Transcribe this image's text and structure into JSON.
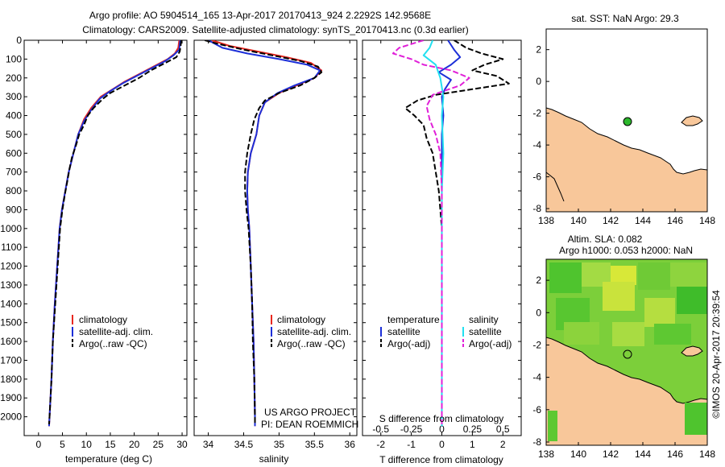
{
  "header": {
    "line1": "Argo profile: AO 5904514_165 13-Apr-2017 20170413_924 2.2292S 142.9568E",
    "line2": "Climatology: CARS2009. Satellite-adjusted climatology: synTS_20170413.nc (0.3d earlier)"
  },
  "colors": {
    "climatology": "#e8281f",
    "satellite": "#1c2fd8",
    "argo": "#000000",
    "salinity_satellite": "#22e0f0",
    "salinity_argo": "#e020d8",
    "land": "#f8c79a",
    "sla_field": "#7ccf3a"
  },
  "chart_data": [
    {
      "type": "line",
      "panel": "temperature",
      "xlabel": "temperature (deg C)",
      "ylabel": "depth",
      "xlim": [
        -3,
        31
      ],
      "ylim": [
        2100,
        0
      ],
      "xticks": [
        "0",
        "5",
        "10",
        "15",
        "20",
        "25",
        "30"
      ],
      "yticks": [
        "0",
        "100",
        "200",
        "300",
        "400",
        "500",
        "600",
        "700",
        "800",
        "900",
        "1000",
        "1100",
        "1200",
        "1300",
        "1400",
        "1500",
        "1600",
        "1700",
        "1800",
        "1900",
        "2000"
      ],
      "legend": [
        "climatology",
        "satellite-adj. clim.",
        "Argo(..raw -QC)"
      ],
      "series": [
        {
          "name": "climatology",
          "color": "#e8281f",
          "points": [
            [
              29.4,
              0
            ],
            [
              29.2,
              40
            ],
            [
              28.5,
              70
            ],
            [
              27,
              100
            ],
            [
              24,
              140
            ],
            [
              21,
              180
            ],
            [
              18,
              220
            ],
            [
              15.5,
              260
            ],
            [
              13,
              300
            ],
            [
              11,
              360
            ],
            [
              9.5,
              420
            ],
            [
              8.3,
              500
            ],
            [
              7.3,
              600
            ],
            [
              6.3,
              700
            ],
            [
              5.6,
              800
            ],
            [
              4.9,
              900
            ],
            [
              4.4,
              1000
            ],
            [
              3.9,
              1200
            ],
            [
              3.4,
              1400
            ],
            [
              3.0,
              1600
            ],
            [
              2.7,
              1800
            ],
            [
              2.3,
              2000
            ],
            [
              2.2,
              2050
            ]
          ]
        },
        {
          "name": "satellite-adj. clim.",
          "color": "#1c2fd8",
          "points": [
            [
              29.6,
              0
            ],
            [
              29.4,
              50
            ],
            [
              28.2,
              80
            ],
            [
              26.5,
              110
            ],
            [
              23.5,
              150
            ],
            [
              20.5,
              190
            ],
            [
              17.5,
              230
            ],
            [
              15,
              270
            ],
            [
              12.8,
              310
            ],
            [
              11,
              370
            ],
            [
              9.5,
              430
            ],
            [
              8.3,
              500
            ],
            [
              7.3,
              600
            ],
            [
              6.3,
              700
            ],
            [
              5.6,
              800
            ],
            [
              4.9,
              900
            ],
            [
              4.4,
              1000
            ],
            [
              3.9,
              1200
            ],
            [
              3.4,
              1400
            ],
            [
              3.0,
              1600
            ],
            [
              2.7,
              1800
            ],
            [
              2.3,
              2000
            ],
            [
              2.2,
              2050
            ]
          ]
        },
        {
          "name": "Argo(..raw -QC)",
          "color": "#000000",
          "dashed": true,
          "points": [
            [
              29.8,
              0
            ],
            [
              29.7,
              30
            ],
            [
              29.5,
              60
            ],
            [
              28.8,
              90
            ],
            [
              26.5,
              120
            ],
            [
              23.5,
              160
            ],
            [
              21,
              200
            ],
            [
              18,
              240
            ],
            [
              15,
              280
            ],
            [
              13.5,
              310
            ],
            [
              11.5,
              360
            ],
            [
              10.3,
              400
            ],
            [
              9.5,
              450
            ],
            [
              8.5,
              500
            ],
            [
              7.8,
              560
            ],
            [
              7.0,
              620
            ],
            [
              6.5,
              680
            ],
            [
              6.0,
              750
            ],
            [
              5.5,
              820
            ],
            [
              5.0,
              900
            ],
            [
              4.5,
              1000
            ],
            [
              4.0,
              1200
            ],
            [
              3.5,
              1400
            ],
            [
              3.0,
              1600
            ],
            [
              2.7,
              1800
            ],
            [
              2.3,
              2000
            ],
            [
              2.2,
              2040
            ]
          ]
        }
      ]
    },
    {
      "type": "line",
      "panel": "salinity",
      "xlabel": "salinity",
      "ylim": [
        2100,
        0
      ],
      "xlim": [
        33.8,
        36.1
      ],
      "xticks": [
        "34",
        "34.5",
        "35",
        "35.5",
        "36"
      ],
      "legend": [
        "climatology",
        "satellite-adj. clim.",
        "Argo(..raw -QC)"
      ],
      "annotation": [
        "US ARGO PROJECT",
        "PI: DEAN ROEMMICH"
      ],
      "series": [
        {
          "name": "climatology",
          "color": "#e8281f",
          "points": [
            [
              34.05,
              0
            ],
            [
              34.3,
              30
            ],
            [
              34.7,
              60
            ],
            [
              35.1,
              90
            ],
            [
              35.45,
              120
            ],
            [
              35.6,
              160
            ],
            [
              35.5,
              200
            ],
            [
              35.25,
              240
            ],
            [
              35.0,
              280
            ],
            [
              34.8,
              330
            ],
            [
              34.72,
              400
            ],
            [
              34.68,
              500
            ],
            [
              34.6,
              600
            ],
            [
              34.56,
              700
            ],
            [
              34.55,
              800
            ],
            [
              34.56,
              900
            ],
            [
              34.58,
              1000
            ],
            [
              34.6,
              1200
            ],
            [
              34.62,
              1400
            ],
            [
              34.64,
              1600
            ],
            [
              34.65,
              1800
            ],
            [
              34.66,
              2000
            ],
            [
              34.66,
              2050
            ]
          ]
        },
        {
          "name": "satellite-adj. clim.",
          "color": "#1c2fd8",
          "points": [
            [
              34.0,
              0
            ],
            [
              34.2,
              40
            ],
            [
              34.55,
              70
            ],
            [
              35.0,
              100
            ],
            [
              35.4,
              130
            ],
            [
              35.58,
              160
            ],
            [
              35.5,
              200
            ],
            [
              35.22,
              240
            ],
            [
              34.98,
              280
            ],
            [
              34.8,
              330
            ],
            [
              34.72,
              400
            ],
            [
              34.68,
              500
            ],
            [
              34.6,
              600
            ],
            [
              34.56,
              700
            ],
            [
              34.55,
              800
            ],
            [
              34.56,
              900
            ],
            [
              34.58,
              1000
            ],
            [
              34.6,
              1200
            ],
            [
              34.62,
              1400
            ],
            [
              34.64,
              1600
            ],
            [
              34.65,
              1800
            ],
            [
              34.66,
              2000
            ],
            [
              34.66,
              2050
            ]
          ]
        },
        {
          "name": "Argo(..raw -QC)",
          "color": "#000000",
          "dashed": true,
          "points": [
            [
              33.95,
              0
            ],
            [
              34.15,
              20
            ],
            [
              34.5,
              50
            ],
            [
              34.9,
              80
            ],
            [
              35.3,
              110
            ],
            [
              35.55,
              140
            ],
            [
              35.6,
              170
            ],
            [
              35.5,
              200
            ],
            [
              35.3,
              240
            ],
            [
              35.0,
              280
            ],
            [
              34.8,
              320
            ],
            [
              34.72,
              360
            ],
            [
              34.65,
              420
            ],
            [
              34.6,
              500
            ],
            [
              34.55,
              600
            ],
            [
              34.52,
              700
            ],
            [
              34.52,
              800
            ],
            [
              34.54,
              900
            ],
            [
              34.57,
              1000
            ],
            [
              34.6,
              1200
            ],
            [
              34.62,
              1400
            ],
            [
              34.63,
              1600
            ],
            [
              34.65,
              1800
            ],
            [
              34.66,
              2000
            ],
            [
              34.66,
              2040
            ]
          ]
        }
      ]
    },
    {
      "type": "line",
      "panel": "difference",
      "xlabel": "T difference from climatology",
      "top_axis_label": "S difference from climatology",
      "ylim": [
        2100,
        0
      ],
      "xlim": [
        -2.6,
        2.6
      ],
      "xticks_T": [
        "-2",
        "-1",
        "0",
        "1",
        "2"
      ],
      "xticks_S": [
        "-0.5",
        "-0.25",
        "0",
        "0.25",
        "0.5"
      ],
      "legend_temperature": [
        "temperature",
        "satellite",
        "Argo(-adj)"
      ],
      "legend_salinity": [
        "salinity",
        "satellite",
        "Argo(-adj)"
      ],
      "series": [
        {
          "name": "temperature satellite",
          "color": "#1c2fd8",
          "points": [
            [
              0.2,
              0
            ],
            [
              0.4,
              50
            ],
            [
              0.6,
              90
            ],
            [
              0.3,
              130
            ],
            [
              -0.1,
              170
            ],
            [
              0.3,
              210
            ],
            [
              0.1,
              260
            ],
            [
              0,
              300
            ],
            [
              0.05,
              400
            ],
            [
              0,
              500
            ],
            [
              0,
              700
            ],
            [
              0,
              900
            ],
            [
              0,
              1200
            ],
            [
              0,
              1600
            ],
            [
              0,
              2000
            ],
            [
              0,
              2050
            ]
          ]
        },
        {
          "name": "temperature Argo(-adj)",
          "color": "#000000",
          "dashed": true,
          "points": [
            [
              0.4,
              0
            ],
            [
              0.8,
              40
            ],
            [
              1.3,
              70
            ],
            [
              2.0,
              100
            ],
            [
              1.4,
              130
            ],
            [
              1.0,
              160
            ],
            [
              1.8,
              190
            ],
            [
              2.2,
              230
            ],
            [
              1.0,
              260
            ],
            [
              -0.2,
              290
            ],
            [
              -0.8,
              320
            ],
            [
              -1.2,
              360
            ],
            [
              -0.9,
              400
            ],
            [
              -0.6,
              450
            ],
            [
              -0.5,
              520
            ],
            [
              -0.3,
              600
            ],
            [
              -0.2,
              700
            ],
            [
              -0.1,
              800
            ],
            [
              0,
              1000
            ],
            [
              0,
              1300
            ],
            [
              0,
              1600
            ],
            [
              0,
              2000
            ],
            [
              0,
              2040
            ]
          ]
        },
        {
          "name": "salinity satellite",
          "color": "#22e0f0",
          "points": [
            [
              -0.3,
              0
            ],
            [
              -0.4,
              40
            ],
            [
              -0.6,
              80
            ],
            [
              -0.2,
              130
            ],
            [
              -0.05,
              200
            ],
            [
              0.05,
              300
            ],
            [
              0,
              400
            ],
            [
              0.05,
              600
            ],
            [
              0,
              800
            ],
            [
              0,
              1000
            ],
            [
              0,
              1500
            ],
            [
              0,
              2000
            ],
            [
              0,
              2050
            ]
          ]
        },
        {
          "name": "salinity Argo(-adj)",
          "color": "#e020d8",
          "dashed": true,
          "points": [
            [
              -0.6,
              0
            ],
            [
              -1.4,
              40
            ],
            [
              -1.6,
              70
            ],
            [
              -1.0,
              100
            ],
            [
              -0.6,
              130
            ],
            [
              0.3,
              160
            ],
            [
              0.9,
              200
            ],
            [
              0.6,
              240
            ],
            [
              -0.3,
              290
            ],
            [
              -0.5,
              350
            ],
            [
              -0.4,
              420
            ],
            [
              -0.2,
              500
            ],
            [
              -0.05,
              600
            ],
            [
              0,
              800
            ],
            [
              0,
              1000
            ],
            [
              0,
              1500
            ],
            [
              0,
              2000
            ],
            [
              0,
              2040
            ]
          ]
        }
      ]
    },
    {
      "type": "map",
      "panel": "sst_map",
      "title": "sat. SST: NaN Argo: 29.3",
      "xlim": [
        138,
        148
      ],
      "ylim": [
        -8.2,
        3.3
      ],
      "xticks": [
        "138",
        "140",
        "142",
        "144",
        "146",
        "148"
      ],
      "yticks": [
        "2",
        "0",
        "-2",
        "-4",
        "-6",
        "-8"
      ],
      "float_position": [
        142.96,
        -2.23
      ]
    },
    {
      "type": "map",
      "panel": "sla_map",
      "title_line1": "Altim. SLA: 0.082",
      "title_line2": "Argo h1000: 0.053 h2000: NaN",
      "xlim": [
        138,
        148
      ],
      "ylim": [
        -8.2,
        3.3
      ],
      "xticks": [
        "138",
        "140",
        "142",
        "144",
        "146",
        "148"
      ],
      "yticks": [
        "2",
        "0",
        "-2",
        "-4",
        "-6",
        "-8"
      ],
      "float_position": [
        142.96,
        -2.23
      ]
    }
  ],
  "footer": {
    "credit": "©IMOS 20-Apr-2017 20:39:54"
  }
}
